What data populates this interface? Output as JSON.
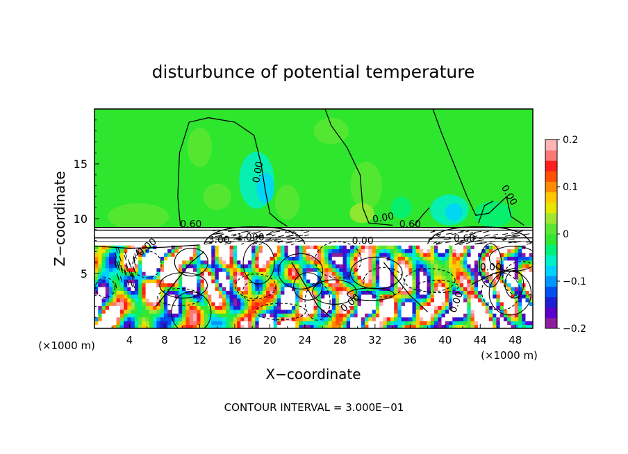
{
  "chart_data": {
    "type": "heatmap",
    "title": "disturbunce of potential temperature",
    "xlabel": "X−coordinate",
    "ylabel": "Z−coordinate",
    "x_unit": "(×1000 m)",
    "x_unit_right": "(×1000 m)",
    "y_unit": "(×1000 m)",
    "footer": "CONTOUR INTERVAL = 3.000E−01",
    "xlim": [
      0,
      50
    ],
    "ylim": [
      0,
      20
    ],
    "x_ticks": [
      4,
      8,
      12,
      16,
      20,
      24,
      28,
      32,
      36,
      40,
      44,
      48
    ],
    "y_ticks": [
      5,
      10,
      15
    ],
    "colorbar": {
      "min": -0.2,
      "max": 0.2,
      "tick_values": [
        0.2,
        0.1,
        0,
        -0.1,
        -0.2
      ],
      "tick_labels": [
        "0.2",
        "0.1",
        "0",
        "−0.1",
        "−0.2"
      ],
      "colors": [
        "#8c1ea0",
        "#5a00c8",
        "#1e1ed2",
        "#0050f0",
        "#0096ff",
        "#00d2ff",
        "#00f0c8",
        "#00f078",
        "#32e632",
        "#5ae632",
        "#a0e632",
        "#e6e600",
        "#ffc800",
        "#ff8c00",
        "#ff5000",
        "#ff1e1e",
        "#ff7878",
        "#ffb4b4"
      ]
    },
    "contour_labels": [
      {
        "text": "0.00",
        "x": 19.0,
        "z": 14.2,
        "rotate": -80
      },
      {
        "text": "0.00",
        "x": 47.0,
        "z": 12.0,
        "rotate": 60
      },
      {
        "text": "0.00",
        "x": 33.0,
        "z": 9.8,
        "rotate": -10
      },
      {
        "text": "0.60",
        "x": 11.0,
        "z": 9.2,
        "rotate": 0
      },
      {
        "text": "0.60",
        "x": 36.0,
        "z": 9.2,
        "rotate": 0
      },
      {
        "text": "3.00",
        "x": 14.2,
        "z": 7.8,
        "rotate": 0
      },
      {
        "text": "1.000",
        "x": 17.8,
        "z": 8.0,
        "rotate": 0
      },
      {
        "text": "0.00",
        "x": 30.6,
        "z": 7.7,
        "rotate": 0
      },
      {
        "text": "0.60",
        "x": 42.2,
        "z": 7.9,
        "rotate": 0
      },
      {
        "text": "0.00",
        "x": 6.2,
        "z": 7.2,
        "rotate": -40
      },
      {
        "text": "0.00",
        "x": 45.2,
        "z": 5.3,
        "rotate": 0
      },
      {
        "text": "0.00",
        "x": 29.4,
        "z": 2.1,
        "rotate": -40
      },
      {
        "text": "0.00",
        "x": 41.6,
        "z": 2.3,
        "rotate": -70
      }
    ],
    "regions": {
      "upper_layer_value": 0.0,
      "separator_band_z": [
        7.9,
        9.2
      ],
      "turbulent_layer_z": [
        0,
        7.6
      ]
    }
  }
}
